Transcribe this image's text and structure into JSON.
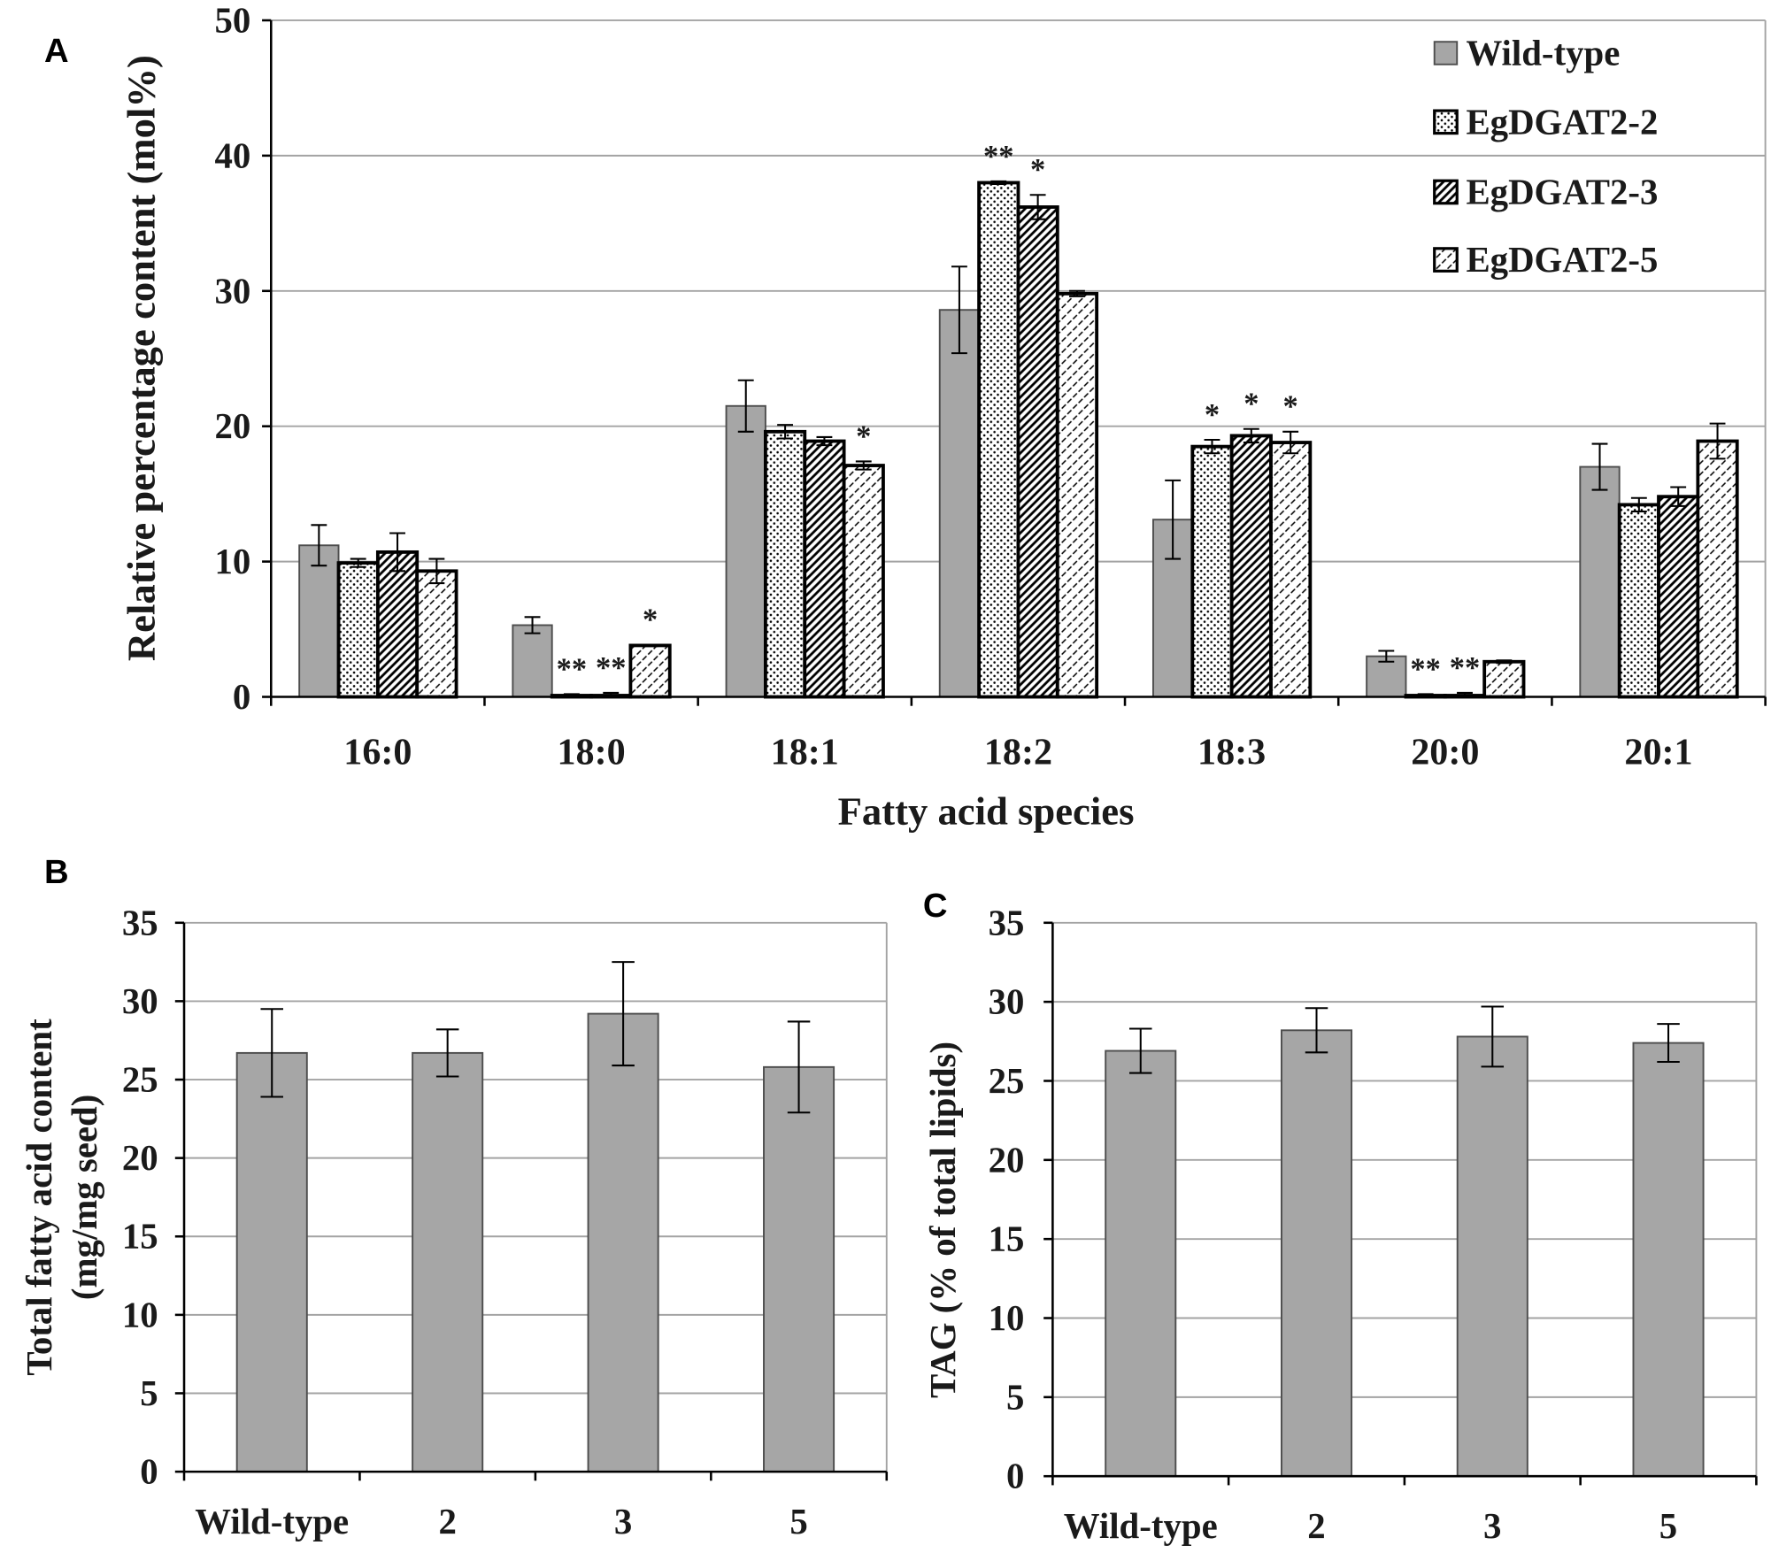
{
  "chart_data": [
    {
      "panel": "A",
      "type": "bar",
      "title": "",
      "xlabel": "Fatty acid species",
      "ylabel": "Relative percentage content (mol%)",
      "categories": [
        "16:0",
        "18:0",
        "18:1",
        "18:2",
        "18:3",
        "20:0",
        "20:1"
      ],
      "ylim": [
        0,
        50
      ],
      "yticks": [
        0,
        10,
        20,
        30,
        40,
        50
      ],
      "grid": true,
      "legend": "top-right",
      "series": [
        {
          "name": "Wild-type",
          "color": "#a6a6a6",
          "values": [
            11.2,
            5.3,
            21.5,
            28.6,
            13.1,
            3.0,
            17.0
          ],
          "errors": [
            1.5,
            0.6,
            1.9,
            3.2,
            2.9,
            0.4,
            1.7
          ],
          "significance": [
            "",
            "",
            "",
            "",
            "",
            "",
            ""
          ]
        },
        {
          "name": "EgDGAT2-2",
          "values": [
            9.9,
            0.1,
            19.6,
            38.0,
            18.5,
            0.1,
            14.2
          ],
          "errors": [
            0.3,
            0.1,
            0.5,
            0.1,
            0.5,
            0.1,
            0.5
          ],
          "significance": [
            "",
            "**",
            "",
            "**",
            "*",
            "**",
            ""
          ]
        },
        {
          "name": "EgDGAT2-3",
          "values": [
            10.7,
            0.1,
            18.9,
            36.2,
            19.3,
            0.1,
            14.8
          ],
          "errors": [
            1.4,
            0.2,
            0.3,
            0.9,
            0.5,
            0.2,
            0.7
          ],
          "significance": [
            "",
            "**",
            "",
            "*",
            "*",
            "**",
            ""
          ]
        },
        {
          "name": "EgDGAT2-5",
          "values": [
            9.3,
            3.8,
            17.1,
            29.8,
            18.8,
            2.6,
            18.9
          ],
          "errors": [
            0.9,
            0.05,
            0.3,
            0.2,
            0.8,
            0.1,
            1.3
          ],
          "significance": [
            "",
            "*",
            "*",
            "",
            "*",
            "",
            ""
          ]
        }
      ]
    },
    {
      "panel": "B",
      "type": "bar",
      "title": "",
      "xlabel": "",
      "ylabel": [
        "Total fatty acid content",
        "(mg/mg seed)"
      ],
      "categories": [
        "Wild-type",
        "2",
        "3",
        "5"
      ],
      "values": [
        26.7,
        26.7,
        29.2,
        25.8
      ],
      "errors": [
        2.8,
        1.5,
        3.3,
        2.9
      ],
      "color": "#a6a6a6",
      "ylim": [
        0,
        35
      ],
      "yticks": [
        0,
        5,
        10,
        15,
        20,
        25,
        30,
        35
      ],
      "grid": true
    },
    {
      "panel": "C",
      "type": "bar",
      "title": "",
      "xlabel": "",
      "ylabel": "TAG (% of total lipids)",
      "categories": [
        "Wild-type",
        "2",
        "3",
        "5"
      ],
      "values": [
        26.9,
        28.2,
        27.8,
        27.4
      ],
      "errors": [
        1.4,
        1.4,
        1.9,
        1.2
      ],
      "color": "#a6a6a6",
      "ylim": [
        0,
        35
      ],
      "yticks": [
        0,
        5,
        10,
        15,
        20,
        25,
        30,
        35
      ],
      "grid": true
    }
  ]
}
